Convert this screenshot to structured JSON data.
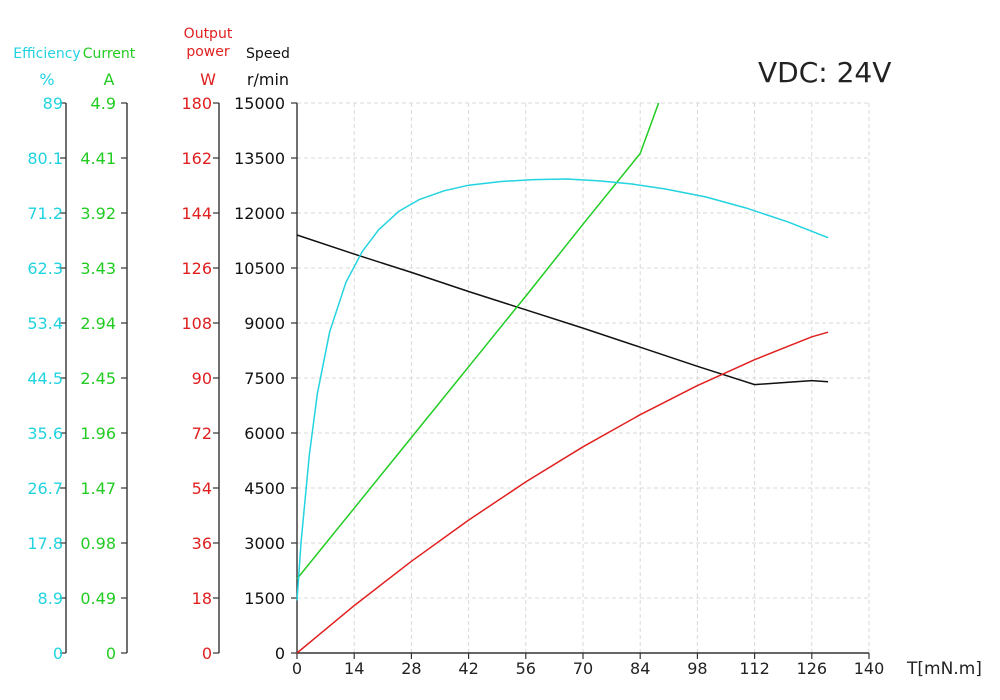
{
  "chart_data": {
    "type": "line",
    "title": "VDC: 24V",
    "xlabel": "T[mN.m]",
    "x_ticks": [
      "0",
      "14",
      "28",
      "42",
      "56",
      "70",
      "84",
      "98",
      "112",
      "126",
      "140"
    ],
    "xlim": [
      0,
      140
    ],
    "grid": true,
    "axes": [
      {
        "key": "efficiency",
        "name": "Efficiency",
        "unit": "%",
        "color": "#22d3e0",
        "range": [
          0,
          89
        ],
        "ticks": [
          "0",
          "8.9",
          "17.8",
          "26.7",
          "35.6",
          "44.5",
          "53.4",
          "62.3",
          "71.2",
          "80.1",
          "89"
        ]
      },
      {
        "key": "current",
        "name": "Current",
        "unit": "A",
        "color": "#22cc22",
        "range": [
          0,
          4.9
        ],
        "ticks": [
          "0",
          "0.49",
          "0.98",
          "1.47",
          "1.96",
          "2.45",
          "2.94",
          "3.43",
          "3.92",
          "4.41",
          "4.9"
        ]
      },
      {
        "key": "power",
        "name": "Output\npower",
        "unit": "W",
        "color": "#e02020",
        "range": [
          0,
          180
        ],
        "ticks": [
          "0",
          "18",
          "36",
          "54",
          "72",
          "90",
          "108",
          "126",
          "144",
          "162",
          "180"
        ]
      },
      {
        "key": "speed",
        "name": "Speed",
        "unit": "r/min",
        "color": "#111111",
        "range": [
          0,
          15000
        ],
        "ticks": [
          "0",
          "1500",
          "3000",
          "4500",
          "6000",
          "7500",
          "9000",
          "10500",
          "12000",
          "13500",
          "15000"
        ]
      }
    ],
    "series": [
      {
        "name": "Speed",
        "axis": "speed",
        "color": "#111111",
        "x": [
          0,
          14,
          28,
          42,
          56,
          70,
          84,
          98,
          112,
          126,
          130
        ],
        "y": [
          11400,
          10880,
          10380,
          9860,
          9360,
          8860,
          8340,
          7820,
          7320,
          7430,
          7400
        ]
      },
      {
        "name": "Current",
        "axis": "current",
        "color": "#22cc22",
        "x": [
          0,
          14,
          28,
          42,
          56,
          70,
          84,
          88.5
        ],
        "y": [
          0.66,
          1.29,
          1.92,
          2.55,
          3.18,
          3.82,
          4.45,
          4.9
        ]
      },
      {
        "name": "Efficiency",
        "axis": "efficiency",
        "color": "#22d3e0",
        "x": [
          0,
          1,
          3,
          5,
          8,
          12,
          16,
          20,
          25,
          30,
          36,
          42,
          50,
          58,
          66,
          74,
          82,
          90,
          100,
          110,
          120,
          130
        ],
        "y": [
          8.5,
          18,
          32,
          42,
          52,
          60,
          65,
          68.5,
          71.5,
          73.4,
          74.8,
          75.7,
          76.3,
          76.6,
          76.7,
          76.4,
          75.9,
          75.1,
          73.8,
          72.0,
          69.8,
          67.2
        ]
      },
      {
        "name": "Output power",
        "axis": "power",
        "color": "#e02020",
        "x": [
          0,
          14,
          28,
          42,
          56,
          70,
          84,
          98,
          112,
          126,
          130
        ],
        "y": [
          0,
          15.5,
          30,
          43.5,
          56,
          67.5,
          78,
          87.5,
          96,
          103.5,
          105
        ]
      }
    ]
  }
}
